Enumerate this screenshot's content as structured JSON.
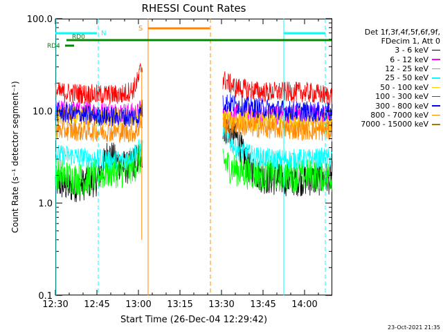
{
  "chart_data": {
    "type": "line",
    "title": "RHESSI Count Rates",
    "xlabel": "Start Time (26-Dec-04 12:29:42)",
    "ylabel": "Count Rate (s⁻¹ detector segment⁻¹)",
    "x_unit": "minutes after 12:30",
    "xlim": [
      0,
      100
    ],
    "ylim": [
      0.1,
      100.0
    ],
    "yscale": "log",
    "xticks": [
      {
        "label": "12:30",
        "value": 0
      },
      {
        "label": "12:45",
        "value": 15
      },
      {
        "label": "13:00",
        "value": 30
      },
      {
        "label": "13:15",
        "value": 45
      },
      {
        "label": "13:30",
        "value": 60
      },
      {
        "label": "13:45",
        "value": 75
      },
      {
        "label": "14:00",
        "value": 90
      }
    ],
    "yticks": [
      {
        "label": "0.1",
        "value": 0.1
      },
      {
        "label": "1.0",
        "value": 1.0
      },
      {
        "label": "10.0",
        "value": 10.0
      },
      {
        "label": "100.0",
        "value": 100.0
      }
    ],
    "legend_position": "right",
    "legend_header": [
      "Det 1f,3f,4f,5f,6f,9f,",
      "FDecim 1, Att 0"
    ],
    "gaps": [
      [
        31.5,
        60.5
      ]
    ],
    "series": [
      {
        "name": "3 - 6 keV",
        "color": "#000000",
        "points": [
          [
            0,
            1.7
          ],
          [
            5,
            1.5
          ],
          [
            10,
            1.6
          ],
          [
            15,
            1.8
          ],
          [
            17,
            2.4
          ],
          [
            19,
            3.5
          ],
          [
            22,
            2.8
          ],
          [
            26,
            2.4
          ],
          [
            29,
            2.9
          ],
          [
            31,
            3.2
          ],
          [
            60.5,
            7.0
          ],
          [
            62,
            6.4
          ],
          [
            64,
            5.8
          ],
          [
            66,
            4.8
          ],
          [
            68,
            3.2
          ],
          [
            70,
            2.4
          ],
          [
            75,
            1.9
          ],
          [
            80,
            1.8
          ],
          [
            85,
            1.8
          ],
          [
            90,
            1.8
          ],
          [
            95,
            1.8
          ],
          [
            100,
            1.9
          ]
        ]
      },
      {
        "name": "6 - 12 keV",
        "color": "#ff00ff",
        "points": [
          [
            0,
            10.2
          ],
          [
            15,
            9.8
          ],
          [
            30,
            9.5
          ],
          [
            31,
            11.0
          ],
          [
            60.5,
            9.0
          ],
          [
            70,
            9.2
          ],
          [
            100,
            9.0
          ]
        ]
      },
      {
        "name": "12 - 25 keV",
        "color": "#00ff00",
        "points": [
          [
            0,
            2.2
          ],
          [
            5,
            1.9
          ],
          [
            10,
            1.8
          ],
          [
            15,
            2.0
          ],
          [
            20,
            2.2
          ],
          [
            25,
            2.2
          ],
          [
            29,
            2.6
          ],
          [
            31,
            3.2
          ],
          [
            60.5,
            3.0
          ],
          [
            62,
            2.6
          ],
          [
            65,
            2.3
          ],
          [
            70,
            2.1
          ],
          [
            80,
            2.0
          ],
          [
            90,
            2.0
          ],
          [
            100,
            2.0
          ]
        ]
      },
      {
        "name": "25 - 50 keV",
        "color": "#00ffff",
        "points": [
          [
            0,
            3.4
          ],
          [
            15,
            3.0
          ],
          [
            25,
            2.9
          ],
          [
            31,
            4.0
          ],
          [
            60.5,
            6.0
          ],
          [
            63,
            4.6
          ],
          [
            66,
            3.8
          ],
          [
            72,
            3.2
          ],
          [
            80,
            3.0
          ],
          [
            90,
            3.0
          ],
          [
            100,
            3.1
          ]
        ]
      },
      {
        "name": "50 - 100 keV",
        "color": "#ffcc00",
        "points": [
          [
            0,
            8.8
          ],
          [
            15,
            8.5
          ],
          [
            30,
            8.3
          ],
          [
            31,
            10.5
          ],
          [
            60.5,
            8.2
          ],
          [
            75,
            7.7
          ],
          [
            100,
            7.5
          ]
        ]
      },
      {
        "name": "100 - 300 keV",
        "color": "#ff0000",
        "points": [
          [
            0,
            16.0
          ],
          [
            15,
            15.0
          ],
          [
            24,
            15.0
          ],
          [
            28,
            17.0
          ],
          [
            30,
            22.0
          ],
          [
            31,
            30.0
          ],
          [
            60.5,
            22.0
          ],
          [
            65,
            18.0
          ],
          [
            75,
            16.0
          ],
          [
            90,
            16.0
          ],
          [
            100,
            14.5
          ]
        ]
      },
      {
        "name": "300 - 800 keV",
        "color": "#0000ff",
        "points": [
          [
            0,
            9.6
          ],
          [
            15,
            8.8
          ],
          [
            30,
            8.5
          ],
          [
            31,
            10.5
          ],
          [
            60.5,
            12.5
          ],
          [
            70,
            11.0
          ],
          [
            85,
            10.0
          ],
          [
            100,
            9.6
          ]
        ]
      },
      {
        "name": "800 - 7000 keV",
        "color": "#ff8800",
        "points": [
          [
            0,
            6.2
          ],
          [
            15,
            6.0
          ],
          [
            29,
            5.8
          ],
          [
            31,
            7.5
          ],
          [
            60.5,
            7.2
          ],
          [
            75,
            6.5
          ],
          [
            100,
            6.0
          ]
        ]
      },
      {
        "name": "7000 - 15000 keV",
        "color": "#aa7700",
        "points": []
      }
    ],
    "annotations": {
      "attenuator_label": "S",
      "attenuator_times": [
        33.5,
        56
      ],
      "attenuator_color": "#ff8800",
      "night_label": "N",
      "night_color": "#00ffff",
      "night_times": [
        0,
        15.5,
        82.5,
        97.5
      ],
      "night_bars": [
        [
          0,
          15.5
        ],
        [
          82.5,
          97.5
        ]
      ],
      "mode_color": "#008800",
      "modes": [
        {
          "label": "RD0",
          "start": 4,
          "end": 100,
          "level": 1
        },
        {
          "label": "RD4",
          "start": 3.5,
          "end": 7,
          "level": 2
        }
      ]
    }
  },
  "timestamp": "23-Oct-2021 21:35"
}
